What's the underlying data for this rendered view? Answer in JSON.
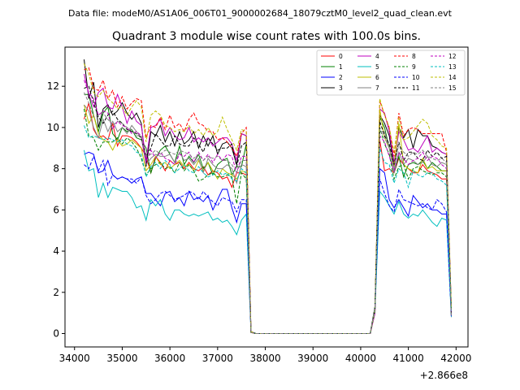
{
  "chart_data": {
    "type": "line",
    "suptitle": "Data file: modeM0/AS1A06_006T01_9000002684_18079cztM0_level2_quad_clean.evt",
    "title": "Quadrant 3 module wise count rates with 100.0s bins.",
    "xlabel": "",
    "ylabel": "",
    "x_offset_label": "+2.866e8",
    "xlim": [
      33800,
      42250
    ],
    "ylim": [
      -0.65,
      13.9
    ],
    "xticks": [
      34000,
      35000,
      36000,
      37000,
      38000,
      39000,
      40000,
      41000,
      42000
    ],
    "xtick_labels": [
      "34000",
      "35000",
      "36000",
      "37000",
      "38000",
      "39000",
      "40000",
      "41000",
      "42000"
    ],
    "yticks": [
      0,
      2,
      4,
      6,
      8,
      10,
      12
    ],
    "ytick_labels": [
      "0",
      "2",
      "4",
      "6",
      "8",
      "10",
      "12"
    ],
    "grid": false,
    "legend_position": "upper-right",
    "legend_columns": 4,
    "x_start": 34200,
    "x_step": 100,
    "gap": {
      "drop_index": 35,
      "zero_from": 36,
      "zero_to": 60,
      "rise_index": 61
    },
    "series": [
      {
        "name": "0",
        "color": "#ff0000",
        "style": "solid",
        "pre": [
          10.4,
          11.2,
          9.9,
          9.5,
          9.6,
          9.4,
          10.2,
          9.1,
          9.6,
          9.6,
          9.5,
          9.3,
          9.0,
          8.6,
          7.8,
          8.6,
          8.3,
          7.9,
          8.4,
          8.2,
          8.3,
          8.0,
          8.3,
          8.0,
          7.9,
          8.1,
          7.7,
          7.9,
          7.8,
          7.5,
          7.6,
          7.1,
          7.8,
          7.8,
          7.7
        ],
        "post": [
          9.4,
          7.9,
          8.0,
          7.8,
          8.5,
          8.2,
          8.0,
          7.8,
          7.8,
          8.2,
          7.9,
          7.8,
          7.7,
          7.5,
          7.5
        ]
      },
      {
        "name": "1",
        "color": "#008000",
        "style": "solid",
        "pre": [
          11.6,
          11.6,
          10.6,
          9.8,
          10.7,
          11.0,
          9.7,
          9.4,
          10.0,
          9.8,
          9.9,
          9.5,
          9.4,
          9.0,
          7.8,
          8.5,
          8.9,
          9.1,
          8.7,
          8.3,
          9.1,
          8.2,
          8.6,
          8.3,
          8.7,
          8.0,
          8.3,
          7.7,
          8.2,
          8.4,
          8.5,
          7.7,
          8.1,
          8.1,
          9.2
        ],
        "post": [
          10.5,
          10.0,
          9.0,
          7.8,
          8.6,
          7.6,
          8.2,
          8.3,
          8.2,
          8.4,
          8.0,
          8.3,
          8.1,
          7.9,
          7.9
        ]
      },
      {
        "name": "2",
        "color": "#0000ff",
        "style": "solid",
        "pre": [
          8.7,
          8.8,
          8.7,
          7.8,
          7.9,
          8.4,
          7.7,
          7.5,
          7.6,
          7.5,
          7.3,
          7.5,
          7.6,
          6.8,
          6.8,
          6.5,
          6.2,
          6.8,
          6.9,
          6.4,
          6.6,
          6.2,
          6.9,
          6.5,
          6.6,
          6.4,
          6.7,
          6.0,
          6.5,
          7.0,
          7.0,
          6.1,
          5.4,
          6.3,
          6.3
        ],
        "post": [
          8.0,
          7.8,
          6.5,
          6.1,
          6.5,
          6.1,
          5.7,
          6.7,
          6.4,
          6.1,
          6.3,
          6.0,
          6.0,
          5.8,
          5.8
        ]
      },
      {
        "name": "3",
        "color": "#000000",
        "style": "solid",
        "pre": [
          13.3,
          11.4,
          12.2,
          10.0,
          10.9,
          11.1,
          10.6,
          10.8,
          11.2,
          10.7,
          10.4,
          10.7,
          10.2,
          8.1,
          9.8,
          9.6,
          10.1,
          9.3,
          9.8,
          9.1,
          9.8,
          9.2,
          9.4,
          9.8,
          9.0,
          9.6,
          9.1,
          9.6,
          8.7,
          9.2,
          9.3,
          9.0,
          8.2,
          9.7,
          9.6
        ],
        "post": [
          10.6,
          10.2,
          9.6,
          8.1,
          10.0,
          9.5,
          9.9,
          9.0,
          9.9,
          9.6,
          9.6,
          9.1,
          9.0,
          8.8,
          8.7
        ]
      },
      {
        "name": "4",
        "color": "#bf00bf",
        "style": "solid",
        "pre": [
          12.6,
          11.6,
          11.0,
          11.7,
          11.9,
          11.0,
          10.9,
          11.6,
          11.0,
          10.2,
          10.8,
          10.3,
          10.1,
          8.4,
          10.0,
          10.1,
          10.4,
          9.6,
          10.0,
          9.6,
          9.4,
          9.5,
          10.0,
          9.3,
          9.5,
          9.3,
          9.5,
          9.1,
          9.3,
          9.5,
          9.5,
          9.2,
          8.4,
          9.7,
          9.6
        ],
        "post": [
          10.9,
          10.7,
          9.8,
          8.3,
          9.8,
          9.4,
          8.9,
          9.0,
          8.8,
          9.2,
          9.6,
          8.8,
          9.0,
          8.8,
          8.7
        ]
      },
      {
        "name": "5",
        "color": "#00bfbf",
        "style": "solid",
        "pre": [
          8.9,
          7.9,
          8.0,
          6.6,
          7.3,
          6.6,
          7.1,
          7.0,
          6.9,
          6.9,
          6.6,
          6.1,
          6.2,
          5.5,
          6.5,
          6.2,
          6.5,
          5.8,
          5.5,
          6.0,
          6.0,
          5.8,
          5.7,
          5.8,
          5.7,
          5.8,
          5.9,
          5.5,
          5.6,
          5.4,
          5.5,
          5.2,
          4.8,
          5.5,
          5.8
        ],
        "post": [
          6.9,
          6.6,
          6.2,
          5.8,
          6.4,
          5.8,
          5.6,
          5.8,
          5.7,
          6.0,
          5.7,
          5.4,
          5.2,
          5.6,
          5.5
        ]
      },
      {
        "name": "6",
        "color": "#bfbf00",
        "style": "solid",
        "pre": [
          11.1,
          10.2,
          10.6,
          9.7,
          9.4,
          9.3,
          8.9,
          9.4,
          9.1,
          9.2,
          9.4,
          9.2,
          9.0,
          7.9,
          8.2,
          8.6,
          8.2,
          8.3,
          8.0,
          8.2,
          8.4,
          8.1,
          8.2,
          7.9,
          8.4,
          7.9,
          8.3,
          7.9,
          7.5,
          8.0,
          7.8,
          7.7,
          7.5,
          7.9,
          7.8
        ],
        "post": [
          10.9,
          9.5,
          9.0,
          8.1,
          10.2,
          8.2,
          8.0,
          7.9,
          7.8,
          8.5,
          8.0,
          8.1,
          7.9,
          7.9,
          7.9
        ]
      },
      {
        "name": "7",
        "color": "#808080",
        "style": "solid",
        "pre": [
          11.1,
          10.8,
          10.0,
          9.5,
          10.4,
          9.8,
          10.3,
          9.8,
          10.0,
          9.7,
          10.1,
          9.8,
          9.5,
          8.2,
          8.5,
          8.7,
          8.6,
          8.6,
          8.7,
          8.3,
          8.8,
          8.4,
          8.5,
          8.2,
          8.5,
          7.8,
          8.5,
          8.2,
          8.0,
          8.0,
          8.2,
          8.0,
          7.3,
          8.2,
          8.1
        ],
        "post": [
          9.8,
          9.8,
          9.0,
          7.8,
          8.8,
          8.2,
          8.5,
          8.4,
          8.2,
          8.3,
          8.6,
          8.2,
          8.1,
          8.3,
          8.2
        ]
      },
      {
        "name": "8",
        "color": "#ff0000",
        "style": "dashed",
        "pre": [
          12.8,
          12.9,
          11.9,
          11.8,
          12.3,
          11.4,
          11.8,
          11.0,
          11.5,
          10.9,
          11.2,
          11.4,
          11.3,
          9.5,
          10.1,
          10.0,
          10.5,
          9.9,
          10.6,
          10.0,
          10.2,
          9.8,
          10.4,
          10.7,
          10.2,
          10.1,
          9.8,
          9.8,
          9.4,
          9.5,
          9.3,
          9.0,
          8.6,
          9.7,
          10.0
        ],
        "post": [
          11.3,
          10.6,
          10.0,
          8.6,
          10.7,
          9.6,
          9.9,
          10.0,
          9.9,
          9.7,
          9.7,
          9.7,
          9.7,
          9.7,
          8.8
        ]
      },
      {
        "name": "9",
        "color": "#008000",
        "style": "dashed",
        "pre": [
          10.9,
          9.6,
          9.5,
          8.9,
          9.3,
          9.3,
          9.3,
          9.5,
          9.2,
          9.5,
          9.3,
          9.0,
          8.5,
          7.7,
          8.0,
          8.2,
          8.3,
          8.0,
          8.1,
          7.8,
          8.3,
          7.9,
          8.2,
          7.9,
          7.4,
          7.5,
          7.7,
          7.8,
          7.6,
          7.6,
          7.7,
          7.6,
          6.3,
          7.8,
          7.5
        ],
        "post": [
          10.0,
          9.2,
          8.7,
          7.5,
          8.1,
          8.2,
          7.5,
          8.0,
          8.1,
          7.9,
          7.8,
          7.7,
          7.8,
          7.8,
          7.6
        ]
      },
      {
        "name": "10",
        "color": "#0000ff",
        "style": "dashed",
        "pre": [
          8.2,
          8.0,
          8.6,
          7.9,
          8.4,
          7.2,
          7.7,
          7.5,
          7.6,
          7.5,
          7.5,
          7.3,
          7.6,
          6.7,
          6.3,
          6.5,
          6.8,
          6.9,
          6.7,
          6.5,
          6.6,
          6.7,
          6.9,
          6.8,
          6.5,
          6.9,
          6.6,
          6.4,
          6.2,
          6.6,
          6.5,
          6.4,
          5.9,
          6.5,
          6.5
        ],
        "post": [
          7.5,
          6.8,
          6.2,
          5.9,
          7.0,
          6.5,
          6.4,
          6.3,
          6.2,
          6.3,
          6.1,
          6.0,
          6.5,
          6.3,
          5.9
        ]
      },
      {
        "name": "11",
        "color": "#000000",
        "style": "dashed",
        "pre": [
          11.9,
          12.0,
          11.2,
          10.5,
          10.2,
          10.6,
          10.8,
          10.4,
          10.2,
          9.9,
          9.8,
          9.7,
          9.5,
          8.6,
          9.0,
          9.7,
          9.4,
          9.1,
          9.1,
          9.6,
          9.2,
          9.1,
          9.1,
          9.5,
          9.2,
          8.8,
          9.5,
          9.2,
          8.9,
          9.0,
          9.0,
          9.2,
          8.1,
          9.1,
          9.3
        ],
        "post": [
          10.3,
          9.6,
          9.2,
          8.2,
          9.3,
          8.4,
          8.8,
          8.8,
          8.5,
          8.4,
          8.9,
          8.6,
          8.8,
          8.5,
          8.6
        ]
      },
      {
        "name": "12",
        "color": "#bf00bf",
        "style": "dashed",
        "pre": [
          12.3,
          11.7,
          11.4,
          10.6,
          10.8,
          10.7,
          9.9,
          10.3,
          10.1,
          10.0,
          9.7,
          9.8,
          9.6,
          8.3,
          8.9,
          8.5,
          8.8,
          8.5,
          8.4,
          8.2,
          8.7,
          8.6,
          8.8,
          8.3,
          8.8,
          8.4,
          8.7,
          8.3,
          8.7,
          8.4,
          8.7,
          8.6,
          7.8,
          8.6,
          8.6
        ],
        "post": [
          9.6,
          9.3,
          8.6,
          7.9,
          8.8,
          8.5,
          8.2,
          8.4,
          8.5,
          8.8,
          8.4,
          8.6,
          8.5,
          8.2,
          8.0
        ]
      },
      {
        "name": "13",
        "color": "#00bfbf",
        "style": "dashed",
        "pre": [
          10.1,
          9.5,
          9.6,
          9.5,
          9.4,
          9.5,
          9.4,
          9.3,
          9.4,
          9.2,
          9.1,
          8.8,
          8.7,
          7.6,
          8.1,
          8.3,
          8.0,
          8.4,
          8.2,
          7.8,
          8.0,
          8.2,
          7.9,
          7.8,
          8.1,
          7.8,
          7.6,
          7.7,
          7.9,
          7.7,
          7.8,
          7.5,
          7.4,
          8.0,
          7.8
        ],
        "post": [
          9.0,
          8.3,
          8.2,
          7.3,
          8.0,
          7.8,
          7.1,
          7.9,
          7.7,
          7.6,
          7.8,
          7.8,
          7.5,
          7.4,
          7.2
        ]
      },
      {
        "name": "14",
        "color": "#bfbf00",
        "style": "dashed",
        "pre": [
          13.1,
          12.6,
          11.7,
          11.5,
          11.8,
          11.4,
          11.2,
          10.9,
          11.0,
          10.6,
          11.0,
          11.3,
          11.0,
          9.3,
          10.6,
          10.8,
          10.6,
          10.1,
          10.0,
          9.8,
          9.9,
          9.8,
          10.1,
          9.7,
          9.9,
          9.6,
          10.0,
          9.6,
          9.8,
          10.5,
          9.9,
          9.4,
          8.9,
          9.9,
          9.8
        ],
        "post": [
          11.4,
          10.6,
          10.0,
          8.8,
          10.5,
          9.4,
          9.5,
          9.8,
          10.1,
          10.4,
          10.2,
          9.6,
          9.4,
          9.1,
          9.0
        ]
      },
      {
        "name": "15",
        "color": "#808080",
        "style": "dashed",
        "pre": [
          11.7,
          11.2,
          10.5,
          10.6,
          10.7,
          10.4,
          10.1,
          10.3,
          10.2,
          10.0,
          9.9,
          9.6,
          9.6,
          8.6,
          8.7,
          8.9,
          8.7,
          8.9,
          8.8,
          8.7,
          8.9,
          8.8,
          8.7,
          8.5,
          8.7,
          8.4,
          8.6,
          8.5,
          8.6,
          8.4,
          8.4,
          8.2,
          7.8,
          8.4,
          8.4
        ],
        "post": [
          9.9,
          9.5,
          9.0,
          8.0,
          9.2,
          8.8,
          8.6,
          8.8,
          8.7,
          8.9,
          8.6,
          8.5,
          8.4,
          8.5,
          8.3
        ]
      }
    ]
  }
}
